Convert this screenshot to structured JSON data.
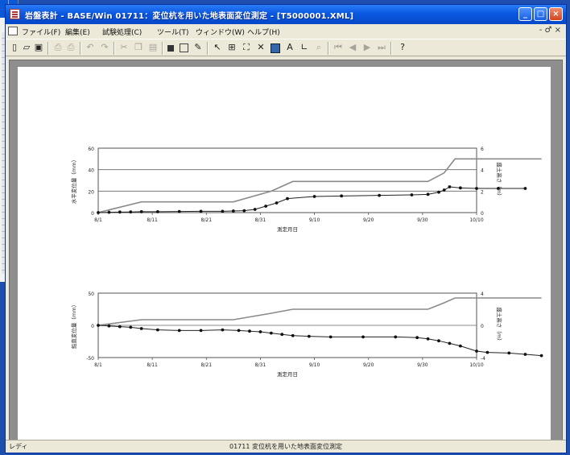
{
  "window": {
    "title": "岩盤表計 - BASE/Win 01711：変位杭を用いた地表面変位測定 - [T5000001.XML]",
    "controls": {
      "minimize": "_",
      "maximize": "□",
      "close": "×"
    }
  },
  "menu": {
    "items": [
      "ファイル(F)",
      "編集(E)",
      "試験処理(C)",
      "ツール(T)",
      "ウィンドウ(W)",
      "ヘルプ(H)"
    ],
    "mdi_controls": "- ♂ ×"
  },
  "toolbar": {
    "icons": [
      "new-icon",
      "open-icon",
      "save-icon",
      "print-preview-icon",
      "print-icon",
      "undo-icon",
      "redo-icon",
      "cut-icon",
      "copy-icon",
      "paste-icon",
      "stop-icon",
      "graph-icon",
      "pen-icon",
      "pointer-icon",
      "grid-icon",
      "fit-icon",
      "delete-icon",
      "color-icon",
      "text-icon",
      "scale-icon",
      "zoom-icon",
      "first-icon",
      "prev-icon",
      "next-icon",
      "last-icon",
      "help-icon"
    ]
  },
  "statusbar": {
    "left": "レディ",
    "center": "01711 変位杭を用いた地表面変位測定"
  },
  "chart_data": [
    {
      "type": "line",
      "x_ticks": [
        "8/1",
        "8/11",
        "8/21",
        "8/31",
        "9/10",
        "9/20",
        "9/30",
        "10/10"
      ],
      "xlabel": "測定月日",
      "ylabel_left": "水平変位量（mm）",
      "ylabel_right": "盛土高さ（m）",
      "ylim_left": [
        0,
        60
      ],
      "yticks_left": [
        "0",
        "20",
        "40",
        "60"
      ],
      "ylim_right": [
        0,
        6
      ],
      "yticks_right": [
        "0",
        "2",
        "4",
        "6"
      ],
      "grid": true,
      "series": [
        {
          "axis": "right",
          "style": "line",
          "x": [
            0,
            8,
            25,
            32,
            36,
            61,
            64,
            66,
            82
          ],
          "values": [
            0,
            1,
            1,
            2,
            2.9,
            2.9,
            3.7,
            5.0,
            5.0
          ]
        },
        {
          "axis": "left",
          "style": "line-markers",
          "x": [
            0,
            2,
            4,
            6,
            8,
            11,
            15,
            19,
            23,
            25,
            27,
            29,
            31,
            33,
            35,
            40,
            45,
            52,
            58,
            61,
            63,
            64,
            65,
            67,
            70,
            74,
            79
          ],
          "values": [
            0,
            0.3,
            0.5,
            0.6,
            0.8,
            0.8,
            1,
            1.2,
            1.2,
            1.5,
            1.8,
            3,
            6,
            9,
            13,
            15,
            15.5,
            16,
            16.5,
            17,
            19,
            21,
            24,
            23,
            22.5,
            22.5,
            22.5
          ]
        }
      ]
    },
    {
      "type": "line",
      "x_ticks": [
        "8/1",
        "8/11",
        "8/21",
        "8/31",
        "9/10",
        "9/20",
        "9/30",
        "10/10"
      ],
      "xlabel": "測定月日",
      "ylabel_left": "鉛直変位量（mm）",
      "ylabel_right": "盛土高さ（m）",
      "ylim_left": [
        -50,
        50
      ],
      "yticks_left": [
        "-50",
        "0",
        "50"
      ],
      "ylim_right": [
        -4,
        4
      ],
      "yticks_right": [
        "-4",
        "0",
        "4"
      ],
      "grid": true,
      "series": [
        {
          "axis": "right",
          "style": "line",
          "x": [
            0,
            8,
            25,
            32,
            36,
            61,
            64,
            66,
            82
          ],
          "values": [
            0,
            0.7,
            0.7,
            1.5,
            2.0,
            2.0,
            2.8,
            3.4,
            3.4
          ]
        },
        {
          "axis": "left",
          "style": "line-markers",
          "x": [
            0,
            2,
            4,
            6,
            8,
            11,
            15,
            19,
            23,
            26,
            28,
            30,
            32,
            34,
            36,
            39,
            43,
            49,
            55,
            59,
            61,
            63,
            65,
            67,
            70,
            72,
            76,
            79,
            82
          ],
          "values": [
            0,
            -1,
            -2,
            -3,
            -5,
            -7,
            -8,
            -8,
            -7,
            -8,
            -9,
            -10,
            -12,
            -14,
            -16,
            -17,
            -18,
            -18,
            -18,
            -19,
            -21,
            -24,
            -28,
            -32,
            -40,
            -42,
            -43,
            -45,
            -47
          ]
        }
      ]
    }
  ]
}
